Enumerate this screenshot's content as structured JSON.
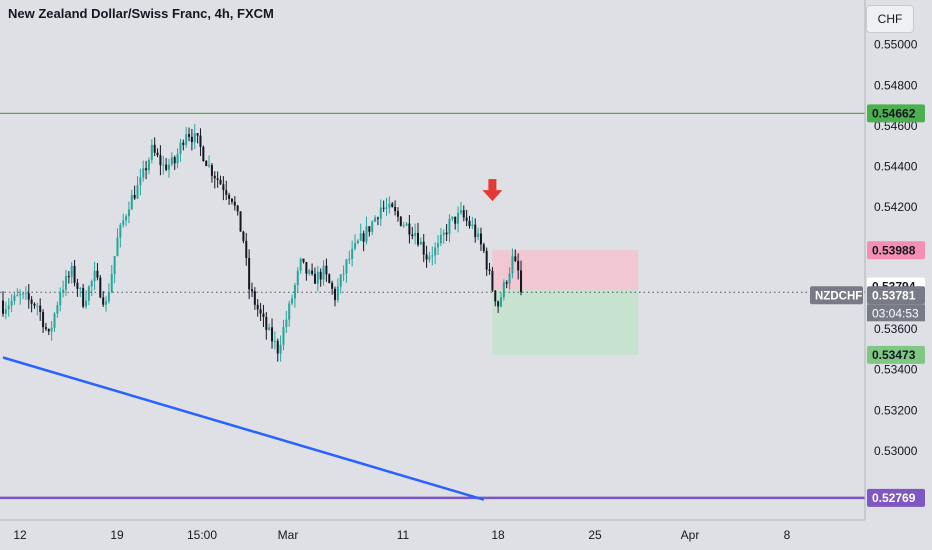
{
  "header": {
    "title": "New Zealand Dollar/Swiss Franc, 4h, FXCM"
  },
  "scale_button": {
    "label": "CHF"
  },
  "colors": {
    "background": "#dfe0e6",
    "up": "#26a69a",
    "down": "#131722",
    "resistance_line": "#4caf50",
    "support_line": "#7e57c2",
    "trend_line": "#2962ff",
    "arrow": "#e53935",
    "stop_zone": "#f2c4cf",
    "target_zone": "#c4e2cb"
  },
  "chart_data": {
    "type": "candlestick",
    "title": "New Zealand Dollar/Swiss Franc, 4h, FXCM",
    "symbol": "NZDCHF",
    "timeframe": "4h",
    "price_axis": {
      "range": [
        0.5271,
        0.5512
      ],
      "ticks": [
        "0.55000",
        "0.54800",
        "0.54600",
        "0.54400",
        "0.54200",
        "0.53600",
        "0.53400",
        "0.53200",
        "0.53000"
      ]
    },
    "time_axis": {
      "labels": [
        "12",
        "19",
        "15:00",
        "Mar",
        "11",
        "18",
        "25",
        "Apr",
        "8"
      ]
    },
    "price_labels": [
      {
        "name": "resistance",
        "value": "0.54662",
        "price": 0.54662,
        "color": "#4caf50"
      },
      {
        "name": "stop",
        "value": "0.53988",
        "price": 0.53988,
        "color": "#f48fb1"
      },
      {
        "name": "entry",
        "value": "0.53794",
        "price": 0.53794,
        "color": "#ffffff"
      },
      {
        "name": "current",
        "value": "0.53781",
        "price": 0.53781,
        "color": "#787b86"
      },
      {
        "name": "target",
        "value": "0.53473",
        "price": 0.53473,
        "color": "#81c784"
      },
      {
        "name": "support",
        "value": "0.52769",
        "price": 0.52769,
        "color": "#7e57c2"
      }
    ],
    "current": {
      "symbol": "NZDCHF",
      "price": "0.53781",
      "countdown": "03:04:53"
    },
    "horizontal_lines": [
      {
        "name": "resistance",
        "price": 0.54662
      },
      {
        "name": "support",
        "price": 0.52769
      }
    ],
    "trend_line": {
      "from": {
        "t": 0,
        "price": 0.5346
      },
      "to": {
        "t": 168,
        "price": 0.5276
      }
    },
    "position": {
      "start_t": 171,
      "end_t": 222,
      "entry": 0.53794,
      "stop": 0.53988,
      "target": 0.53473
    },
    "arrow": {
      "t": 171,
      "price": 0.5424
    },
    "close_anchors": [
      [
        0,
        0.5371
      ],
      [
        6,
        0.5376
      ],
      [
        12,
        0.5372
      ],
      [
        16,
        0.5356
      ],
      [
        20,
        0.5379
      ],
      [
        24,
        0.5388
      ],
      [
        28,
        0.5374
      ],
      [
        32,
        0.5386
      ],
      [
        36,
        0.5372
      ],
      [
        40,
        0.5404
      ],
      [
        44,
        0.5422
      ],
      [
        48,
        0.5432
      ],
      [
        52,
        0.5448
      ],
      [
        56,
        0.544
      ],
      [
        60,
        0.5442
      ],
      [
        64,
        0.5458
      ],
      [
        68,
        0.5452
      ],
      [
        72,
        0.544
      ],
      [
        76,
        0.5432
      ],
      [
        80,
        0.5425
      ],
      [
        84,
        0.5404
      ],
      [
        86,
        0.538
      ],
      [
        88,
        0.5373
      ],
      [
        92,
        0.536
      ],
      [
        96,
        0.535
      ],
      [
        100,
        0.537
      ],
      [
        104,
        0.5392
      ],
      [
        108,
        0.5384
      ],
      [
        112,
        0.5388
      ],
      [
        116,
        0.5376
      ],
      [
        120,
        0.5392
      ],
      [
        124,
        0.5402
      ],
      [
        128,
        0.541
      ],
      [
        132,
        0.542
      ],
      [
        136,
        0.5418
      ],
      [
        140,
        0.5412
      ],
      [
        144,
        0.5408
      ],
      [
        148,
        0.5396
      ],
      [
        152,
        0.54
      ],
      [
        156,
        0.5412
      ],
      [
        160,
        0.5416
      ],
      [
        164,
        0.541
      ],
      [
        168,
        0.5398
      ],
      [
        171,
        0.538
      ],
      [
        173,
        0.5372
      ],
      [
        176,
        0.5385
      ],
      [
        178,
        0.5394
      ],
      [
        180,
        0.5388
      ],
      [
        181,
        0.5378
      ]
    ]
  }
}
